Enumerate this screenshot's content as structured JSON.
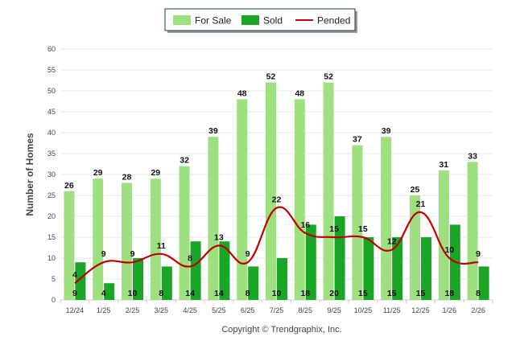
{
  "chart_data": {
    "type": "bar",
    "categories": [
      "12/24",
      "1/25",
      "2/25",
      "3/25",
      "4/25",
      "5/25",
      "6/25",
      "7/25",
      "8/25",
      "9/25",
      "10/25",
      "11/25",
      "12/25",
      "1/26",
      "2/26"
    ],
    "series": [
      {
        "name": "For Sale",
        "type": "bar",
        "color": "#9ee07f",
        "values": [
          26,
          29,
          28,
          29,
          32,
          39,
          48,
          52,
          48,
          52,
          37,
          39,
          25,
          31,
          33
        ]
      },
      {
        "name": "Sold",
        "type": "bar",
        "color": "#19a526",
        "values": [
          9,
          4,
          10,
          8,
          14,
          14,
          8,
          10,
          18,
          20,
          15,
          15,
          15,
          18,
          8
        ]
      },
      {
        "name": "Pended",
        "type": "line",
        "color": "#c00000",
        "values": [
          4,
          9,
          9,
          11,
          8,
          13,
          9,
          22,
          16,
          15,
          15,
          12,
          21,
          10,
          9
        ]
      }
    ],
    "ylabel": "Number of Homes",
    "xlabel": "",
    "ylim": [
      0,
      60
    ],
    "yticks": [
      0,
      5,
      10,
      15,
      20,
      25,
      30,
      35,
      40,
      45,
      50,
      55,
      60
    ],
    "grid": true,
    "legend_position": "top-center"
  },
  "footer": {
    "copyright": "Copyright © Trendgraphix, Inc."
  }
}
